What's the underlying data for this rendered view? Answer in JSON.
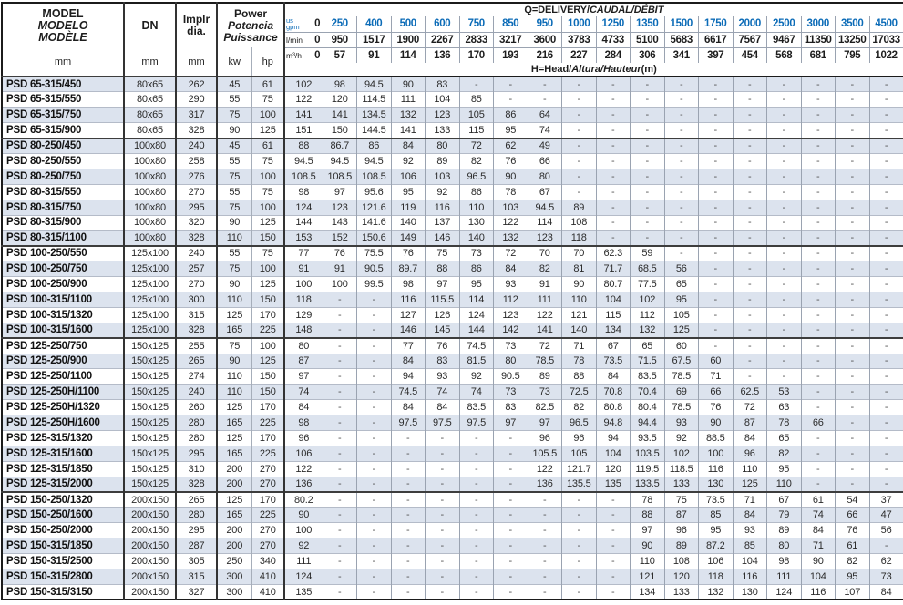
{
  "header": {
    "model": {
      "en": "MODEL",
      "es": "MODELO",
      "fr": "MODÈLE",
      "unit": "mm"
    },
    "dn": {
      "label": "DN",
      "unit": "mm"
    },
    "impeller": {
      "line1": "Implr",
      "line2": "dia.",
      "unit": "mm"
    },
    "power": {
      "en": "Power",
      "es": "Potencia",
      "fr": "Puissance",
      "unit_kw": "kw",
      "unit_hp": "hp"
    },
    "q": {
      "main": "Q=DELIVERY/",
      "intl": "CAUDAL/DÉBIT"
    },
    "h": {
      "main": "H=Head/",
      "intl": "Altura/Hauteur",
      "unit": "(m)"
    },
    "flow_units": {
      "gpm_line1": "us",
      "gpm_line2": "gpm",
      "lmin": "l/min",
      "m3h": "m³/h"
    }
  },
  "colors": {
    "accent_blue": "#0b6bb7",
    "stripe": "#dce3ee"
  },
  "flow": {
    "gpm": [
      "0",
      "250",
      "400",
      "500",
      "600",
      "750",
      "850",
      "950",
      "1000",
      "1250",
      "1350",
      "1500",
      "1750",
      "2000",
      "2500",
      "3000",
      "3500",
      "4500"
    ],
    "lmin": [
      "0",
      "950",
      "1517",
      "1900",
      "2267",
      "2833",
      "3217",
      "3600",
      "3783",
      "4733",
      "5100",
      "5683",
      "6617",
      "7567",
      "9467",
      "11350",
      "13250",
      "17033"
    ],
    "m3h": [
      "0",
      "57",
      "91",
      "114",
      "136",
      "170",
      "193",
      "216",
      "227",
      "284",
      "306",
      "341",
      "397",
      "454",
      "568",
      "681",
      "795",
      "1022"
    ]
  },
  "rows": [
    {
      "model": "PSD 65-315/450",
      "dn": "80x65",
      "implr": "262",
      "kw": "45",
      "hp": "61",
      "head": [
        "102",
        "98",
        "94.5",
        "90",
        "83",
        "-",
        "-",
        "-",
        "-",
        "-",
        "-",
        "-",
        "-",
        "-",
        "-",
        "-",
        "-",
        "-"
      ]
    },
    {
      "model": "PSD 65-315/550",
      "dn": "80x65",
      "implr": "290",
      "kw": "55",
      "hp": "75",
      "head": [
        "122",
        "120",
        "114.5",
        "111",
        "104",
        "85",
        "-",
        "-",
        "-",
        "-",
        "-",
        "-",
        "-",
        "-",
        "-",
        "-",
        "-",
        "-"
      ]
    },
    {
      "model": "PSD 65-315/750",
      "dn": "80x65",
      "implr": "317",
      "kw": "75",
      "hp": "100",
      "head": [
        "141",
        "141",
        "134.5",
        "132",
        "123",
        "105",
        "86",
        "64",
        "-",
        "-",
        "-",
        "-",
        "-",
        "-",
        "-",
        "-",
        "-",
        "-"
      ]
    },
    {
      "model": "PSD 65-315/900",
      "dn": "80x65",
      "implr": "328",
      "kw": "90",
      "hp": "125",
      "head": [
        "151",
        "150",
        "144.5",
        "141",
        "133",
        "115",
        "95",
        "74",
        "-",
        "-",
        "-",
        "-",
        "-",
        "-",
        "-",
        "-",
        "-",
        "-"
      ]
    },
    {
      "model": "PSD 80-250/450",
      "dn": "100x80",
      "implr": "240",
      "kw": "45",
      "hp": "61",
      "head": [
        "88",
        "86.7",
        "86",
        "84",
        "80",
        "72",
        "62",
        "49",
        "-",
        "-",
        "-",
        "-",
        "-",
        "-",
        "-",
        "-",
        "-",
        "-"
      ]
    },
    {
      "model": "PSD 80-250/550",
      "dn": "100x80",
      "implr": "258",
      "kw": "55",
      "hp": "75",
      "head": [
        "94.5",
        "94.5",
        "94.5",
        "92",
        "89",
        "82",
        "76",
        "66",
        "-",
        "-",
        "-",
        "-",
        "-",
        "-",
        "-",
        "-",
        "-",
        "-"
      ]
    },
    {
      "model": "PSD 80-250/750",
      "dn": "100x80",
      "implr": "276",
      "kw": "75",
      "hp": "100",
      "head": [
        "108.5",
        "108.5",
        "108.5",
        "106",
        "103",
        "96.5",
        "90",
        "80",
        "-",
        "-",
        "-",
        "-",
        "-",
        "-",
        "-",
        "-",
        "-",
        "-"
      ]
    },
    {
      "model": "PSD 80-315/550",
      "dn": "100x80",
      "implr": "270",
      "kw": "55",
      "hp": "75",
      "head": [
        "98",
        "97",
        "95.6",
        "95",
        "92",
        "86",
        "78",
        "67",
        "-",
        "-",
        "-",
        "-",
        "-",
        "-",
        "-",
        "-",
        "-",
        "-"
      ]
    },
    {
      "model": "PSD 80-315/750",
      "dn": "100x80",
      "implr": "295",
      "kw": "75",
      "hp": "100",
      "head": [
        "124",
        "123",
        "121.6",
        "119",
        "116",
        "110",
        "103",
        "94.5",
        "89",
        "-",
        "-",
        "-",
        "-",
        "-",
        "-",
        "-",
        "-",
        "-"
      ]
    },
    {
      "model": "PSD 80-315/900",
      "dn": "100x80",
      "implr": "320",
      "kw": "90",
      "hp": "125",
      "head": [
        "144",
        "143",
        "141.6",
        "140",
        "137",
        "130",
        "122",
        "114",
        "108",
        "-",
        "-",
        "-",
        "-",
        "-",
        "-",
        "-",
        "-",
        "-"
      ]
    },
    {
      "model": "PSD 80-315/1100",
      "dn": "100x80",
      "implr": "328",
      "kw": "110",
      "hp": "150",
      "head": [
        "153",
        "152",
        "150.6",
        "149",
        "146",
        "140",
        "132",
        "123",
        "118",
        "-",
        "-",
        "-",
        "-",
        "-",
        "-",
        "-",
        "-",
        "-"
      ]
    },
    {
      "model": "PSD 100-250/550",
      "dn": "125x100",
      "implr": "240",
      "kw": "55",
      "hp": "75",
      "head": [
        "77",
        "76",
        "75.5",
        "76",
        "75",
        "73",
        "72",
        "70",
        "70",
        "62.3",
        "59",
        "-",
        "-",
        "-",
        "-",
        "-",
        "-",
        "-"
      ]
    },
    {
      "model": "PSD 100-250/750",
      "dn": "125x100",
      "implr": "257",
      "kw": "75",
      "hp": "100",
      "head": [
        "91",
        "91",
        "90.5",
        "89.7",
        "88",
        "86",
        "84",
        "82",
        "81",
        "71.7",
        "68.5",
        "56",
        "-",
        "-",
        "-",
        "-",
        "-",
        "-"
      ]
    },
    {
      "model": "PSD 100-250/900",
      "dn": "125x100",
      "implr": "270",
      "kw": "90",
      "hp": "125",
      "head": [
        "100",
        "100",
        "99.5",
        "98",
        "97",
        "95",
        "93",
        "91",
        "90",
        "80.7",
        "77.5",
        "65",
        "-",
        "-",
        "-",
        "-",
        "-",
        "-"
      ]
    },
    {
      "model": "PSD 100-315/1100",
      "dn": "125x100",
      "implr": "300",
      "kw": "110",
      "hp": "150",
      "head": [
        "118",
        "-",
        "-",
        "116",
        "115.5",
        "114",
        "112",
        "111",
        "110",
        "104",
        "102",
        "95",
        "-",
        "-",
        "-",
        "-",
        "-",
        "-"
      ]
    },
    {
      "model": "PSD 100-315/1320",
      "dn": "125x100",
      "implr": "315",
      "kw": "125",
      "hp": "170",
      "head": [
        "129",
        "-",
        "-",
        "127",
        "126",
        "124",
        "123",
        "122",
        "121",
        "115",
        "112",
        "105",
        "-",
        "-",
        "-",
        "-",
        "-",
        "-"
      ]
    },
    {
      "model": "PSD 100-315/1600",
      "dn": "125x100",
      "implr": "328",
      "kw": "165",
      "hp": "225",
      "head": [
        "148",
        "-",
        "-",
        "146",
        "145",
        "144",
        "142",
        "141",
        "140",
        "134",
        "132",
        "125",
        "-",
        "-",
        "-",
        "-",
        "-",
        "-"
      ]
    },
    {
      "model": "PSD 125-250/750",
      "dn": "150x125",
      "implr": "255",
      "kw": "75",
      "hp": "100",
      "head": [
        "80",
        "-",
        "-",
        "77",
        "76",
        "74.5",
        "73",
        "72",
        "71",
        "67",
        "65",
        "60",
        "-",
        "-",
        "-",
        "-",
        "-",
        "-"
      ]
    },
    {
      "model": "PSD 125-250/900",
      "dn": "150x125",
      "implr": "265",
      "kw": "90",
      "hp": "125",
      "head": [
        "87",
        "-",
        "-",
        "84",
        "83",
        "81.5",
        "80",
        "78.5",
        "78",
        "73.5",
        "71.5",
        "67.5",
        "60",
        "-",
        "-",
        "-",
        "-",
        "-"
      ]
    },
    {
      "model": "PSD 125-250/1100",
      "dn": "150x125",
      "implr": "274",
      "kw": "110",
      "hp": "150",
      "head": [
        "97",
        "-",
        "-",
        "94",
        "93",
        "92",
        "90.5",
        "89",
        "88",
        "84",
        "83.5",
        "78.5",
        "71",
        "-",
        "-",
        "-",
        "-",
        "-"
      ]
    },
    {
      "model": "PSD 125-250H/1100",
      "dn": "150x125",
      "implr": "240",
      "kw": "110",
      "hp": "150",
      "head": [
        "74",
        "-",
        "-",
        "74.5",
        "74",
        "74",
        "73",
        "73",
        "72.5",
        "70.8",
        "70.4",
        "69",
        "66",
        "62.5",
        "53",
        "-",
        "-",
        "-"
      ]
    },
    {
      "model": "PSD 125-250H/1320",
      "dn": "150x125",
      "implr": "260",
      "kw": "125",
      "hp": "170",
      "head": [
        "84",
        "-",
        "-",
        "84",
        "84",
        "83.5",
        "83",
        "82.5",
        "82",
        "80.8",
        "80.4",
        "78.5",
        "76",
        "72",
        "63",
        "-",
        "-",
        "-"
      ]
    },
    {
      "model": "PSD 125-250H/1600",
      "dn": "150x125",
      "implr": "280",
      "kw": "165",
      "hp": "225",
      "head": [
        "98",
        "-",
        "-",
        "97.5",
        "97.5",
        "97.5",
        "97",
        "97",
        "96.5",
        "94.8",
        "94.4",
        "93",
        "90",
        "87",
        "78",
        "66",
        "-",
        "-"
      ]
    },
    {
      "model": "PSD 125-315/1320",
      "dn": "150x125",
      "implr": "280",
      "kw": "125",
      "hp": "170",
      "head": [
        "96",
        "-",
        "-",
        "-",
        "-",
        "-",
        "-",
        "96",
        "96",
        "94",
        "93.5",
        "92",
        "88.5",
        "84",
        "65",
        "-",
        "-",
        "-"
      ]
    },
    {
      "model": "PSD 125-315/1600",
      "dn": "150x125",
      "implr": "295",
      "kw": "165",
      "hp": "225",
      "head": [
        "106",
        "-",
        "-",
        "-",
        "-",
        "-",
        "-",
        "105.5",
        "105",
        "104",
        "103.5",
        "102",
        "100",
        "96",
        "82",
        "-",
        "-",
        "-"
      ]
    },
    {
      "model": "PSD 125-315/1850",
      "dn": "150x125",
      "implr": "310",
      "kw": "200",
      "hp": "270",
      "head": [
        "122",
        "-",
        "-",
        "-",
        "-",
        "-",
        "-",
        "122",
        "121.7",
        "120",
        "119.5",
        "118.5",
        "116",
        "110",
        "95",
        "-",
        "-",
        "-"
      ]
    },
    {
      "model": "PSD 125-315/2000",
      "dn": "150x125",
      "implr": "328",
      "kw": "200",
      "hp": "270",
      "head": [
        "136",
        "-",
        "-",
        "-",
        "-",
        "-",
        "-",
        "136",
        "135.5",
        "135",
        "133.5",
        "133",
        "130",
        "125",
        "110",
        "-",
        "-",
        "-"
      ]
    },
    {
      "model": "PSD 150-250/1320",
      "dn": "200x150",
      "implr": "265",
      "kw": "125",
      "hp": "170",
      "head": [
        "80.2",
        "-",
        "-",
        "-",
        "-",
        "-",
        "-",
        "-",
        "-",
        "-",
        "78",
        "75",
        "73.5",
        "71",
        "67",
        "61",
        "54",
        "37"
      ]
    },
    {
      "model": "PSD 150-250/1600",
      "dn": "200x150",
      "implr": "280",
      "kw": "165",
      "hp": "225",
      "head": [
        "90",
        "-",
        "-",
        "-",
        "-",
        "-",
        "-",
        "-",
        "-",
        "-",
        "88",
        "87",
        "85",
        "84",
        "79",
        "74",
        "66",
        "47"
      ]
    },
    {
      "model": "PSD 150-250/2000",
      "dn": "200x150",
      "implr": "295",
      "kw": "200",
      "hp": "270",
      "head": [
        "100",
        "-",
        "-",
        "-",
        "-",
        "-",
        "-",
        "-",
        "-",
        "-",
        "97",
        "96",
        "95",
        "93",
        "89",
        "84",
        "76",
        "56"
      ]
    },
    {
      "model": "PSD 150-315/1850",
      "dn": "200x150",
      "implr": "287",
      "kw": "200",
      "hp": "270",
      "head": [
        "92",
        "-",
        "-",
        "-",
        "-",
        "-",
        "-",
        "-",
        "-",
        "-",
        "90",
        "89",
        "87.2",
        "85",
        "80",
        "71",
        "61",
        "-"
      ]
    },
    {
      "model": "PSD 150-315/2500",
      "dn": "200x150",
      "implr": "305",
      "kw": "250",
      "hp": "340",
      "head": [
        "111",
        "-",
        "-",
        "-",
        "-",
        "-",
        "-",
        "-",
        "-",
        "-",
        "110",
        "108",
        "106",
        "104",
        "98",
        "90",
        "82",
        "62"
      ]
    },
    {
      "model": "PSD 150-315/2800",
      "dn": "200x150",
      "implr": "315",
      "kw": "300",
      "hp": "410",
      "head": [
        "124",
        "-",
        "-",
        "-",
        "-",
        "-",
        "-",
        "-",
        "-",
        "-",
        "121",
        "120",
        "118",
        "116",
        "111",
        "104",
        "95",
        "73"
      ]
    },
    {
      "model": "PSD 150-315/3150",
      "dn": "200x150",
      "implr": "327",
      "kw": "300",
      "hp": "410",
      "head": [
        "135",
        "-",
        "-",
        "-",
        "-",
        "-",
        "-",
        "-",
        "-",
        "-",
        "134",
        "133",
        "132",
        "130",
        "124",
        "116",
        "107",
        "84"
      ]
    }
  ]
}
